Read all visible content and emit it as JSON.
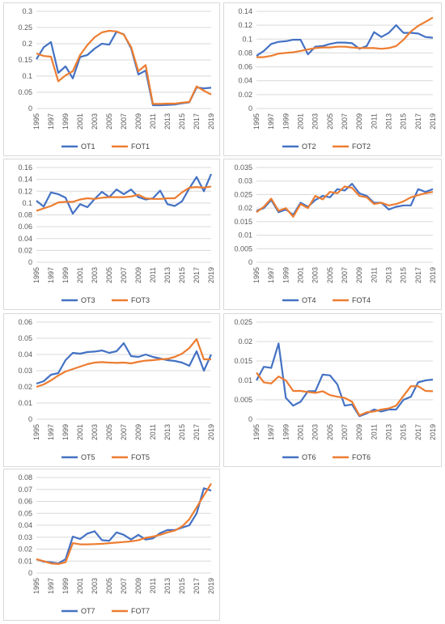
{
  "chart_data": [
    {
      "type": "line",
      "x": [
        1995,
        1996,
        1997,
        1998,
        1999,
        2000,
        2001,
        2002,
        2003,
        2004,
        2005,
        2006,
        2007,
        2008,
        2009,
        2010,
        2011,
        2012,
        2013,
        2014,
        2015,
        2016,
        2017,
        2018,
        2019
      ],
      "x_tick_labels": [
        "1995",
        "1997",
        "1999",
        "2001",
        "2003",
        "2005",
        "2007",
        "2009",
        "2011",
        "2013",
        "2015",
        "2017",
        "2019"
      ],
      "ylim": [
        0,
        0.3
      ],
      "y_tick_labels": [
        "0",
        "0.05",
        "0.1",
        "0.15",
        "0.2",
        "0.25",
        "0.3"
      ],
      "grid": true,
      "legend": "bottom",
      "series": [
        {
          "name": "OT1",
          "color": "#4472c4",
          "values": [
            0.152,
            0.189,
            0.205,
            0.11,
            0.13,
            0.093,
            0.159,
            0.165,
            0.185,
            0.2,
            0.197,
            0.237,
            0.229,
            0.186,
            0.105,
            0.117,
            0.01,
            0.01,
            0.011,
            0.012,
            0.016,
            0.019,
            0.065,
            0.062,
            0.064
          ]
        },
        {
          "name": "FOT1",
          "color": "#ed7d31",
          "values": [
            0.17,
            0.162,
            0.16,
            0.084,
            0.102,
            0.115,
            0.165,
            0.196,
            0.22,
            0.235,
            0.24,
            0.238,
            0.228,
            0.19,
            0.115,
            0.134,
            0.014,
            0.014,
            0.015,
            0.015,
            0.018,
            0.02,
            0.068,
            0.055,
            0.043
          ]
        }
      ]
    },
    {
      "type": "line",
      "x": [
        1995,
        1996,
        1997,
        1998,
        1999,
        2000,
        2001,
        2002,
        2003,
        2004,
        2005,
        2006,
        2007,
        2008,
        2009,
        2010,
        2011,
        2012,
        2013,
        2014,
        2015,
        2016,
        2017,
        2018,
        2019
      ],
      "x_tick_labels": [
        "1995",
        "1997",
        "1999",
        "2001",
        "2003",
        "2005",
        "2007",
        "2009",
        "2011",
        "2013",
        "2015",
        "2017",
        "2019"
      ],
      "ylim": [
        0,
        0.14
      ],
      "y_tick_labels": [
        "0",
        "0.02",
        "0.04",
        "0.06",
        "0.08",
        "0.1",
        "0.12",
        "0.14"
      ],
      "grid": true,
      "legend": "bottom",
      "series": [
        {
          "name": "OT2",
          "color": "#4472c4",
          "values": [
            0.076,
            0.083,
            0.093,
            0.096,
            0.097,
            0.099,
            0.099,
            0.078,
            0.089,
            0.09,
            0.093,
            0.095,
            0.095,
            0.094,
            0.086,
            0.09,
            0.11,
            0.103,
            0.109,
            0.12,
            0.109,
            0.109,
            0.108,
            0.103,
            0.102
          ]
        },
        {
          "name": "FOT2",
          "color": "#ed7d31",
          "values": [
            0.074,
            0.074,
            0.076,
            0.079,
            0.08,
            0.081,
            0.083,
            0.085,
            0.087,
            0.088,
            0.088,
            0.089,
            0.089,
            0.088,
            0.087,
            0.087,
            0.087,
            0.086,
            0.087,
            0.09,
            0.099,
            0.111,
            0.119,
            0.125,
            0.131
          ]
        }
      ]
    },
    {
      "type": "line",
      "x": [
        1995,
        1996,
        1997,
        1998,
        1999,
        2000,
        2001,
        2002,
        2003,
        2004,
        2005,
        2006,
        2007,
        2008,
        2009,
        2010,
        2011,
        2012,
        2013,
        2014,
        2015,
        2016,
        2017,
        2018,
        2019
      ],
      "x_tick_labels": [
        "1995",
        "1997",
        "1999",
        "2001",
        "2003",
        "2005",
        "2007",
        "2009",
        "2011",
        "2013",
        "2015",
        "2017",
        "2019"
      ],
      "ylim": [
        0,
        0.16
      ],
      "y_tick_labels": [
        "0",
        "0.02",
        "0.04",
        "0.06",
        "0.08",
        "0.1",
        "0.12",
        "0.14",
        "0.16"
      ],
      "grid": true,
      "legend": "bottom",
      "series": [
        {
          "name": "OT3",
          "color": "#4472c4",
          "values": [
            0.104,
            0.094,
            0.118,
            0.115,
            0.109,
            0.082,
            0.098,
            0.093,
            0.107,
            0.119,
            0.11,
            0.123,
            0.115,
            0.123,
            0.11,
            0.106,
            0.108,
            0.121,
            0.098,
            0.095,
            0.103,
            0.125,
            0.144,
            0.12,
            0.149
          ]
        },
        {
          "name": "FOT3",
          "color": "#ed7d31",
          "values": [
            0.087,
            0.091,
            0.095,
            0.101,
            0.102,
            0.102,
            0.106,
            0.108,
            0.107,
            0.109,
            0.11,
            0.11,
            0.11,
            0.111,
            0.114,
            0.108,
            0.107,
            0.107,
            0.108,
            0.108,
            0.118,
            0.126,
            0.127,
            0.126,
            0.128
          ]
        }
      ]
    },
    {
      "type": "line",
      "x": [
        1995,
        1996,
        1997,
        1998,
        1999,
        2000,
        2001,
        2002,
        2003,
        2004,
        2005,
        2006,
        2007,
        2008,
        2009,
        2010,
        2011,
        2012,
        2013,
        2014,
        2015,
        2016,
        2017,
        2018,
        2019
      ],
      "x_tick_labels": [
        "1995",
        "1997",
        "1999",
        "2001",
        "2003",
        "2005",
        "2007",
        "2009",
        "2011",
        "2013",
        "2015",
        "2017",
        "2019"
      ],
      "ylim": [
        0,
        0.035
      ],
      "y_tick_labels": [
        "0",
        "0.005",
        "0.01",
        "0.015",
        "0.02",
        "0.025",
        "0.03",
        "0.035"
      ],
      "grid": true,
      "legend": "bottom",
      "series": [
        {
          "name": "OT4",
          "color": "#4472c4",
          "values": [
            0.019,
            0.02,
            0.023,
            0.0185,
            0.0195,
            0.0175,
            0.022,
            0.0205,
            0.023,
            0.0245,
            0.024,
            0.027,
            0.0265,
            0.029,
            0.0255,
            0.0245,
            0.022,
            0.022,
            0.0195,
            0.0205,
            0.021,
            0.021,
            0.027,
            0.026,
            0.027
          ]
        },
        {
          "name": "FOT4",
          "color": "#ed7d31",
          "values": [
            0.0185,
            0.0205,
            0.0235,
            0.019,
            0.02,
            0.0168,
            0.0215,
            0.02,
            0.0245,
            0.0232,
            0.026,
            0.0255,
            0.028,
            0.0275,
            0.0245,
            0.024,
            0.0215,
            0.022,
            0.021,
            0.0215,
            0.0225,
            0.024,
            0.0248,
            0.0255,
            0.026
          ]
        }
      ]
    },
    {
      "type": "line",
      "x": [
        1995,
        1996,
        1997,
        1998,
        1999,
        2000,
        2001,
        2002,
        2003,
        2004,
        2005,
        2006,
        2007,
        2008,
        2009,
        2010,
        2011,
        2012,
        2013,
        2014,
        2015,
        2016,
        2017,
        2018,
        2019
      ],
      "x_tick_labels": [
        "1995",
        "1997",
        "1999",
        "2001",
        "2003",
        "2005",
        "2007",
        "2009",
        "2011",
        "2013",
        "2015",
        "2017",
        "2019"
      ],
      "ylim": [
        0,
        0.06
      ],
      "y_tick_labels": [
        "0",
        "0.01",
        "0.02",
        "0.03",
        "0.04",
        "0.05",
        "0.06"
      ],
      "grid": true,
      "legend": "bottom",
      "series": [
        {
          "name": "OT5",
          "color": "#4472c4",
          "values": [
            0.022,
            0.0235,
            0.0275,
            0.0285,
            0.0365,
            0.041,
            0.0405,
            0.0415,
            0.0418,
            0.0425,
            0.041,
            0.042,
            0.047,
            0.039,
            0.0385,
            0.04,
            0.0385,
            0.0375,
            0.0365,
            0.036,
            0.035,
            0.033,
            0.042,
            0.03,
            0.04
          ]
        },
        {
          "name": "FOT5",
          "color": "#ed7d31",
          "values": [
            0.02,
            0.0215,
            0.024,
            0.027,
            0.0295,
            0.031,
            0.0325,
            0.034,
            0.035,
            0.0353,
            0.035,
            0.0348,
            0.035,
            0.0345,
            0.0355,
            0.0362,
            0.0365,
            0.037,
            0.0373,
            0.0385,
            0.0405,
            0.044,
            0.0495,
            0.037,
            0.037
          ]
        }
      ]
    },
    {
      "type": "line",
      "x": [
        1995,
        1996,
        1997,
        1998,
        1999,
        2000,
        2001,
        2002,
        2003,
        2004,
        2005,
        2006,
        2007,
        2008,
        2009,
        2010,
        2011,
        2012,
        2013,
        2014,
        2015,
        2016,
        2017,
        2018,
        2019
      ],
      "x_tick_labels": [
        "1995",
        "1997",
        "1999",
        "2001",
        "2003",
        "2005",
        "2007",
        "2009",
        "2011",
        "2013",
        "2015",
        "2017",
        "2019"
      ],
      "ylim": [
        0,
        0.025
      ],
      "y_tick_labels": [
        "0",
        "0.005",
        "0.01",
        "0.015",
        "0.02",
        "0.025"
      ],
      "grid": true,
      "legend": "bottom",
      "series": [
        {
          "name": "OT6",
          "color": "#4472c4",
          "values": [
            0.01,
            0.0135,
            0.0132,
            0.0195,
            0.0055,
            0.0035,
            0.0045,
            0.0072,
            0.0072,
            0.0115,
            0.0113,
            0.009,
            0.0035,
            0.0038,
            0.0008,
            0.0015,
            0.0025,
            0.002,
            0.0025,
            0.0025,
            0.005,
            0.0058,
            0.0095,
            0.01,
            0.0102
          ]
        },
        {
          "name": "FOT6",
          "color": "#ed7d31",
          "values": [
            0.012,
            0.0095,
            0.0092,
            0.011,
            0.01,
            0.0073,
            0.0073,
            0.007,
            0.0068,
            0.0072,
            0.0062,
            0.0058,
            0.0055,
            0.0045,
            0.001,
            0.0018,
            0.002,
            0.0025,
            0.0028,
            0.0035,
            0.006,
            0.0085,
            0.0085,
            0.0073,
            0.0072
          ]
        }
      ]
    },
    {
      "type": "line",
      "x": [
        1995,
        1996,
        1997,
        1998,
        1999,
        2000,
        2001,
        2002,
        2003,
        2004,
        2005,
        2006,
        2007,
        2008,
        2009,
        2010,
        2011,
        2012,
        2013,
        2014,
        2015,
        2016,
        2017,
        2018,
        2019
      ],
      "x_tick_labels": [
        "1995",
        "1997",
        "1999",
        "2001",
        "2003",
        "2005",
        "2007",
        "2009",
        "2011",
        "2013",
        "2015",
        "2017",
        "2019"
      ],
      "ylim": [
        0,
        0.08
      ],
      "y_tick_labels": [
        "0",
        "0.01",
        "0.02",
        "0.03",
        "0.04",
        "0.05",
        "0.06",
        "0.07",
        "0.08"
      ],
      "grid": true,
      "legend": "bottom",
      "series": [
        {
          "name": "OT7",
          "color": "#4472c4",
          "values": [
            0.0115,
            0.0095,
            0.009,
            0.008,
            0.0115,
            0.0305,
            0.0285,
            0.033,
            0.035,
            0.0275,
            0.027,
            0.034,
            0.032,
            0.028,
            0.032,
            0.028,
            0.029,
            0.0335,
            0.036,
            0.036,
            0.038,
            0.04,
            0.05,
            0.071,
            0.069
          ]
        },
        {
          "name": "FOT7",
          "color": "#ed7d31",
          "values": [
            0.0115,
            0.01,
            0.008,
            0.0075,
            0.009,
            0.025,
            0.024,
            0.024,
            0.0242,
            0.0245,
            0.025,
            0.0255,
            0.026,
            0.0265,
            0.0275,
            0.0295,
            0.0305,
            0.032,
            0.034,
            0.0355,
            0.039,
            0.045,
            0.055,
            0.065,
            0.075
          ]
        }
      ]
    }
  ]
}
